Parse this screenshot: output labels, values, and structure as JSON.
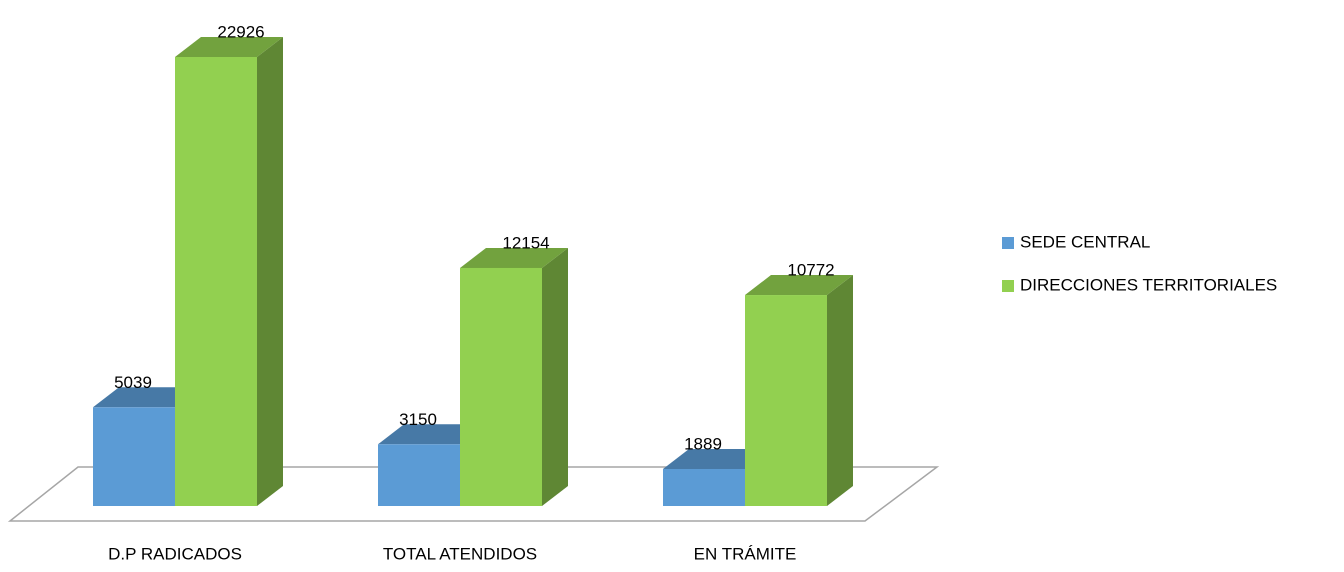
{
  "chart_data": {
    "type": "bar3d",
    "categories": [
      "D.P RADICADOS",
      "TOTAL ATENDIDOS",
      "EN TRÁMITE"
    ],
    "series": [
      {
        "name": "SEDE CENTRAL",
        "color": "#5b9bd5",
        "values": [
          5039,
          3150,
          1889
        ]
      },
      {
        "name": "DIRECCIONES TERRITORIALES",
        "color": "#92d050",
        "values": [
          22926,
          12154,
          10772
        ]
      }
    ],
    "legend": "right"
  }
}
